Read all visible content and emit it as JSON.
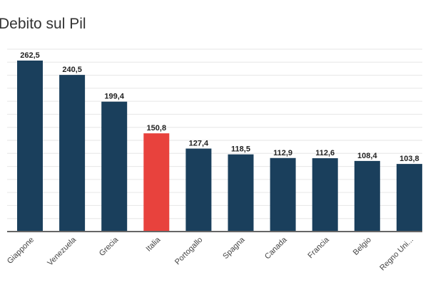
{
  "chart_data": {
    "type": "bar",
    "title": "Debito sul Pil",
    "categories": [
      "Giappone",
      "Venezuela",
      "Grecia",
      "Italia",
      "Portogallo",
      "Spagna",
      "Canada",
      "Francia",
      "Belgio",
      "Regno Uni..."
    ],
    "values": [
      262.5,
      240.5,
      199.4,
      150.8,
      127.4,
      118.5,
      112.9,
      112.6,
      108.4,
      103.8
    ],
    "data_labels": [
      "262,5",
      "240,5",
      "199,4",
      "150,8",
      "127,4",
      "118,5",
      "112,9",
      "112,6",
      "108,4",
      "103,8"
    ],
    "ylim": [
      0,
      280
    ],
    "grid": true,
    "grid_step": 20,
    "colors": {
      "default": "#1a3f5c",
      "highlight": "#e8423d",
      "highlight_category": "Italia",
      "grid": "#e6e6e6",
      "axis": "#666666"
    }
  }
}
